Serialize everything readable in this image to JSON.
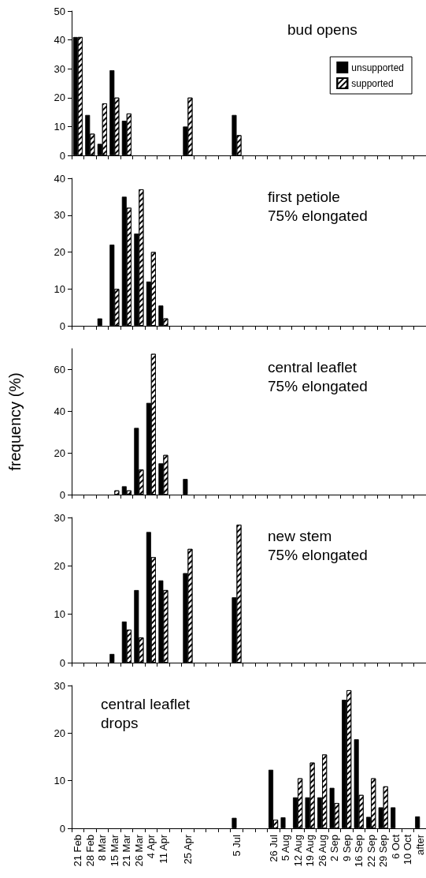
{
  "chart_data": [
    {
      "type": "bar",
      "title": "bud opens",
      "categories": [
        null,
        null,
        null,
        null,
        null,
        null,
        null,
        null,
        null,
        null,
        null,
        null,
        null,
        null,
        null,
        null,
        null,
        null,
        null,
        null,
        null,
        null,
        null,
        null,
        null,
        null,
        null,
        null,
        null
      ],
      "series": [
        {
          "name": "unsupported",
          "color": "#000000",
          "values": [
            41,
            14,
            4,
            29.5,
            12,
            0,
            0,
            0,
            0,
            10,
            0,
            null,
            0,
            14,
            0,
            0,
            0,
            0,
            0,
            0,
            0,
            0,
            0,
            0,
            0,
            0,
            0,
            0,
            0
          ]
        },
        {
          "name": "supported",
          "color": "#ffffff",
          "values": [
            41,
            7.5,
            18,
            20,
            14.5,
            0,
            0,
            0,
            0,
            20,
            0,
            null,
            0,
            7,
            0,
            0,
            0,
            0,
            0,
            0,
            0,
            0,
            0,
            0,
            0,
            0,
            0,
            0,
            0
          ]
        }
      ],
      "ylim": [
        0,
        50
      ],
      "yticks": [
        0,
        10,
        20,
        30,
        40,
        50
      ],
      "legend": "top right",
      "tick_labels": "y"
    },
    {
      "type": "bar",
      "title": "first petiole\n75% elongated",
      "categories": [
        null,
        null,
        null,
        null,
        null,
        null,
        null,
        null,
        null,
        null,
        null,
        null,
        null,
        null,
        null,
        null,
        null,
        null,
        null,
        null,
        null,
        null,
        null,
        null,
        null,
        null,
        null,
        null,
        null
      ],
      "series": [
        {
          "color": "#000000",
          "values": [
            0,
            0,
            2,
            22,
            35,
            25,
            12,
            5.5,
            0,
            0,
            0,
            null,
            0,
            0,
            0,
            0,
            0,
            0,
            0,
            0,
            0,
            0,
            0,
            0,
            0,
            0,
            0,
            0,
            0
          ]
        },
        {
          "color": "#ffffff",
          "values": [
            0,
            0,
            0,
            10,
            32,
            37,
            20,
            2,
            0,
            0,
            0,
            null,
            0,
            0,
            0,
            0,
            0,
            0,
            0,
            0,
            0,
            0,
            0,
            0,
            0,
            0,
            0,
            0,
            0
          ]
        }
      ],
      "ylim": [
        0,
        40
      ],
      "yticks": [
        0,
        10,
        20,
        30,
        40
      ],
      "tick_labels": "y"
    },
    {
      "type": "bar",
      "title": "central leaflet\n75% elongated",
      "ylabel": "frequency (%)",
      "categories": [
        null,
        null,
        null,
        null,
        null,
        null,
        null,
        null,
        null,
        null,
        null,
        null,
        null,
        null,
        null,
        null,
        null,
        null,
        null,
        null,
        null,
        null,
        null,
        null,
        null,
        null,
        null,
        null,
        null
      ],
      "series": [
        {
          "color": "#000000",
          "values": [
            0,
            0,
            0,
            0,
            4,
            32,
            44,
            15,
            0,
            7.5,
            0,
            null,
            0,
            0,
            0,
            0,
            0,
            0,
            0,
            0,
            0,
            0,
            0,
            0,
            0,
            0,
            0,
            0,
            0
          ]
        },
        {
          "color": "#ffffff",
          "values": [
            0,
            0,
            0,
            2,
            2,
            12,
            67.5,
            19,
            0,
            0,
            0,
            null,
            0,
            0,
            0,
            0,
            0,
            0,
            0,
            0,
            0,
            0,
            0,
            0,
            0,
            0,
            0,
            0,
            0
          ]
        }
      ],
      "ylim": [
        0,
        70
      ],
      "yticks": [
        0,
        20,
        40,
        60
      ],
      "tick_labels": "y"
    },
    {
      "type": "bar",
      "title": "new stem\n75% elongated",
      "categories": [
        null,
        null,
        null,
        null,
        null,
        null,
        null,
        null,
        null,
        null,
        null,
        null,
        null,
        null,
        null,
        null,
        null,
        null,
        null,
        null,
        null,
        null,
        null,
        null,
        null,
        null,
        null,
        null,
        null
      ],
      "series": [
        {
          "color": "#000000",
          "values": [
            0,
            0,
            0,
            1.8,
            8.5,
            15,
            27,
            17,
            0,
            18.5,
            0,
            null,
            0,
            13.5,
            0,
            0,
            0,
            0,
            0,
            0,
            0,
            0,
            0,
            0,
            0,
            0,
            0,
            0,
            0
          ]
        },
        {
          "color": "#ffffff",
          "values": [
            0,
            0,
            0,
            0,
            6.8,
            5.2,
            21.8,
            15,
            0,
            23.5,
            0,
            null,
            0,
            28.5,
            0,
            0,
            0,
            0,
            0,
            0,
            0,
            0,
            0,
            0,
            0,
            0,
            0,
            0,
            0
          ]
        }
      ],
      "ylim": [
        0,
        30
      ],
      "yticks": [
        0,
        10,
        20,
        30
      ],
      "tick_labels": "y"
    },
    {
      "type": "bar",
      "title": "central leaflet\ndrops",
      "categories": [
        "21 Feb",
        "28 Feb",
        "8 Mar",
        "15 Mar",
        "21 Mar",
        "26 Mar",
        "4 Apr",
        "11 Apr",
        null,
        "25 Apr",
        null,
        null,
        null,
        "5 Jul",
        null,
        null,
        "26 Jul",
        "5 Aug",
        "12 Aug",
        "19 Aug",
        "26 Aug",
        "2 Sep",
        "9 Sep",
        "16 Sep",
        "22 Sep",
        "29 Sep",
        "6 Oct",
        "10 Oct",
        "after"
      ],
      "series": [
        {
          "color": "#000000",
          "values": [
            0,
            0,
            0,
            0,
            0,
            0,
            0,
            0,
            0,
            0,
            0,
            null,
            0,
            2.2,
            0,
            0,
            12.3,
            2.3,
            6.5,
            6.5,
            6.5,
            8.5,
            27,
            18.7,
            2.4,
            4.4,
            4.4,
            0,
            2.5
          ]
        },
        {
          "color": "#ffffff",
          "values": [
            0,
            0,
            0,
            0,
            0,
            0,
            0,
            0,
            0,
            0,
            0,
            null,
            0,
            0,
            0,
            0,
            1.8,
            0,
            10.5,
            13.8,
            15.5,
            5.3,
            29,
            7,
            10.5,
            8.8,
            0,
            0,
            0
          ]
        }
      ],
      "ylim": [
        0,
        30
      ],
      "yticks": [
        0,
        10,
        20,
        30
      ]
    }
  ]
}
